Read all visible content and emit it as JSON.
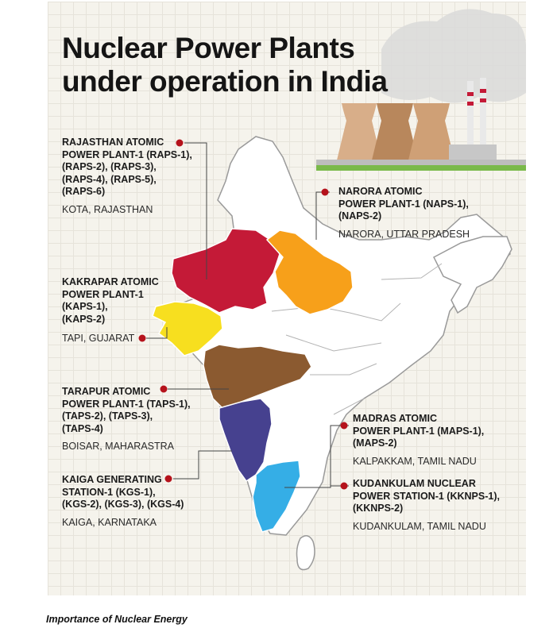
{
  "title": {
    "line1": "Nuclear Power Plants",
    "line2": "under operation in India"
  },
  "plants": [
    {
      "name": "RAJASTHAN ATOMIC\nPOWER PLANT-1 (RAPS-1),\n(RAPS-2), (RAPS-3),\n(RAPS-4),  (RAPS-5),\n(RAPS-6)",
      "location": "KOTA, RAJASTHAN",
      "state_color": "#c41a37"
    },
    {
      "name": "NARORA ATOMIC\nPOWER PLANT-1 (NAPS-1),\n(NAPS-2)",
      "location": "NARORA, UTTAR PRADESH",
      "state_color": "#f7a01a"
    },
    {
      "name": "KAKRAPAR ATOMIC\nPOWER PLANT-1\n(KAPS-1),\n(KAPS-2)",
      "location": "TAPI, GUJARAT",
      "state_color": "#f7df1f"
    },
    {
      "name": "TARAPUR ATOMIC\nPOWER PLANT-1 (TAPS-1),\n(TAPS-2), (TAPS-3),\n(TAPS-4)",
      "location": "BOISAR, MAHARASTRA",
      "state_color": "#8b5a30"
    },
    {
      "name": "KAIGA GENERATING\nSTATION-1 (KGS-1),\n(KGS-2), (KGS-3), (KGS-4)",
      "location": "KAIGA, KARNATAKA",
      "state_color": "#46418f"
    },
    {
      "name": "MADRAS ATOMIC\nPOWER PLANT-1 (MAPS-1),\n(MAPS-2)",
      "location": "KALPAKKAM, TAMIL NADU",
      "state_color": "#35aee6"
    },
    {
      "name": "KUDANKULAM NUCLEAR\nPOWER STATION-1 (KKNPS-1),\n(KKNPS-2)",
      "location": "KUDANKULAM, TAMIL NADU",
      "state_color": "#35aee6"
    }
  ],
  "marker_color": "#b5121b",
  "caption": "Importance of Nuclear Energy"
}
